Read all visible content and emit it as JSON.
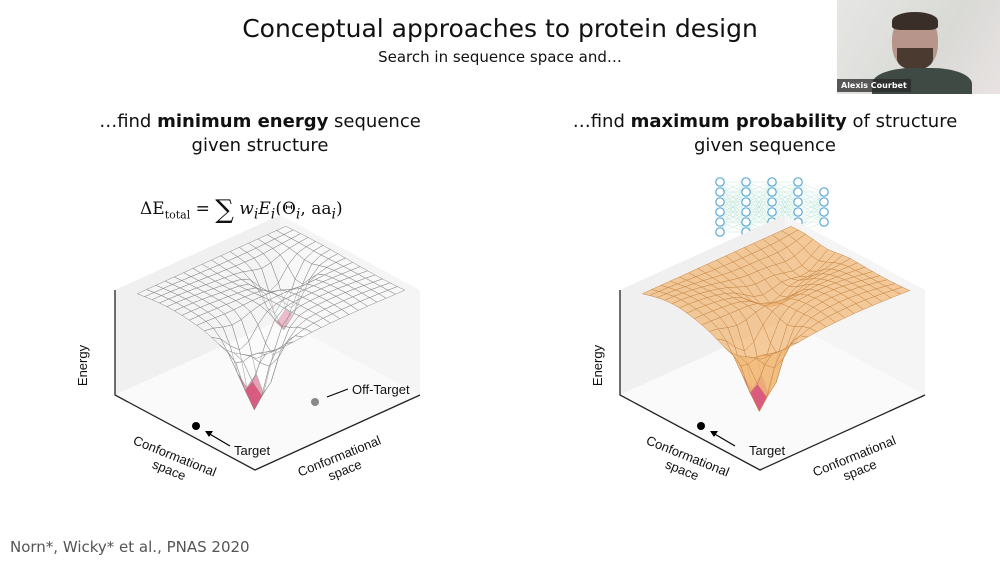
{
  "slide": {
    "title": "Conceptual approaches to protein design",
    "subtitle": "Search in sequence space and…",
    "left": {
      "heading_pre": "…find ",
      "heading_bold": "minimum energy",
      "heading_post": " sequence",
      "heading_line2": "given structure",
      "formula": "ΔE_total = Σ_i w_i E_i(Θ_i, aa_i)",
      "y_axis": "Energy",
      "x_axis_left": "Conformational space",
      "x_axis_right": "Conformational space",
      "target_label": "Target",
      "offtarget_label": "Off-Target"
    },
    "right": {
      "heading_pre": "…find ",
      "heading_bold": "maximum probability",
      "heading_post": " of structure",
      "heading_line2": "given sequence",
      "icon": "neural-network-icon",
      "y_axis": "Energy",
      "x_axis_left": "Conformational space",
      "x_axis_right": "Conformational space",
      "target_label": "Target"
    },
    "citation": "Norn*, Wicky* et al., PNAS 2020"
  },
  "video": {
    "participant_name": "Alexis Courbet"
  },
  "colors": {
    "mesh_left": "#8a8a8a",
    "mesh_right": "#c98a4a",
    "dip": "#d9557a",
    "wall": "#f0f0f0",
    "network": "#5aa9d6"
  }
}
